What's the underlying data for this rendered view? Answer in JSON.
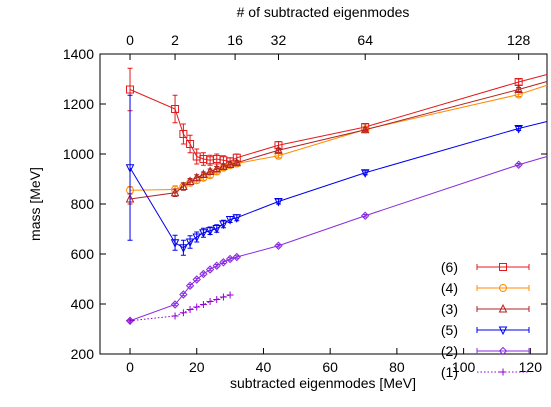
{
  "chart_data": {
    "type": "line",
    "xlabel": "subtracted eigenmodes [MeV]",
    "ylabel": "mass [MeV]",
    "top_xlabel": "# of subtracted eigenmodes",
    "xlim": [
      -9,
      125
    ],
    "ylim": [
      200,
      1400
    ],
    "x_ticks": [
      0,
      20,
      40,
      60,
      80,
      100,
      120
    ],
    "x_tick_labels": [
      "0",
      "20",
      "40",
      "60",
      "80",
      "100",
      "120"
    ],
    "y_ticks": [
      200,
      400,
      600,
      800,
      1000,
      1200,
      1400
    ],
    "y_tick_labels": [
      "200",
      "400",
      "600",
      "800",
      "1000",
      "1200",
      "1400"
    ],
    "top_ticks": [
      {
        "x": 0,
        "label": "0"
      },
      {
        "x": 13.5,
        "label": "2"
      },
      {
        "x": 31.5,
        "label": "16"
      },
      {
        "x": 44.5,
        "label": "32"
      },
      {
        "x": 70.5,
        "label": "64"
      },
      {
        "x": 116.5,
        "label": "128"
      }
    ],
    "grid": false,
    "legend_position": "bottom-right",
    "series": [
      {
        "name": "(6)",
        "color": "#e41a1c",
        "marker": "square",
        "x": [
          0,
          13.5,
          16,
          18,
          20,
          22,
          24,
          26,
          28,
          30,
          32,
          44.5,
          70.5,
          116.5,
          125
        ],
        "y": [
          1258,
          1180,
          1080,
          1040,
          990,
          980,
          975,
          980,
          975,
          970,
          985,
          1035,
          1108,
          1288,
          1318
        ],
        "err": [
          85,
          55,
          40,
          35,
          30,
          25,
          20,
          20,
          18,
          15,
          15,
          15,
          12,
          12,
          0
        ]
      },
      {
        "name": "(4)",
        "color": "#ff8c00",
        "marker": "circle",
        "x": [
          0,
          13.5,
          16,
          18,
          20,
          22,
          24,
          26,
          28,
          30,
          32,
          44.5,
          70.5,
          116.5,
          125
        ],
        "y": [
          855,
          858,
          870,
          885,
          895,
          905,
          915,
          930,
          945,
          955,
          962,
          993,
          1098,
          1238,
          1275
        ],
        "err": [
          15,
          15,
          12,
          12,
          12,
          10,
          10,
          10,
          10,
          10,
          8,
          8,
          8,
          8,
          0
        ]
      },
      {
        "name": "(3)",
        "color": "#b22222",
        "marker": "triangle",
        "x": [
          0,
          13.5,
          16,
          18,
          20,
          22,
          24,
          26,
          28,
          30,
          32,
          44.5,
          70.5,
          116.5,
          125
        ],
        "y": [
          820,
          845,
          870,
          890,
          905,
          918,
          930,
          940,
          950,
          958,
          965,
          1015,
          1097,
          1258,
          1290
        ],
        "err": [
          20,
          15,
          15,
          12,
          12,
          10,
          10,
          10,
          10,
          10,
          8,
          8,
          8,
          8,
          0
        ]
      },
      {
        "name": "(5)",
        "color": "#0000ee",
        "marker": "triangle-down",
        "x": [
          0,
          13.5,
          16,
          18,
          20,
          22,
          24,
          26,
          28,
          30,
          32,
          44.5,
          70.5,
          116.5,
          125
        ],
        "y": [
          945,
          645,
          625,
          648,
          668,
          685,
          693,
          702,
          720,
          738,
          745,
          810,
          925,
          1102,
          1130
        ],
        "err": [
          290,
          30,
          30,
          25,
          20,
          18,
          15,
          15,
          15,
          12,
          12,
          10,
          8,
          8,
          0
        ]
      },
      {
        "name": "(2)",
        "color": "#8a2be2",
        "marker": "diamond",
        "x": [
          0,
          13.5,
          16,
          18,
          20,
          22,
          24,
          26,
          28,
          30,
          32,
          44.5,
          70.5,
          116.5,
          125
        ],
        "y": [
          333,
          398,
          438,
          473,
          498,
          520,
          538,
          553,
          567,
          580,
          588,
          633,
          753,
          957,
          990
        ],
        "err": [
          5,
          5,
          5,
          5,
          5,
          5,
          5,
          5,
          5,
          5,
          5,
          5,
          5,
          5,
          0
        ]
      },
      {
        "name": "(1)",
        "color": "#9400d3",
        "marker": "plus",
        "dashed": true,
        "x": [
          0,
          13.5,
          16,
          18,
          20,
          22,
          24,
          26,
          28,
          30
        ],
        "y": [
          333,
          352,
          365,
          378,
          388,
          398,
          410,
          418,
          428,
          436
        ],
        "err": []
      }
    ]
  }
}
